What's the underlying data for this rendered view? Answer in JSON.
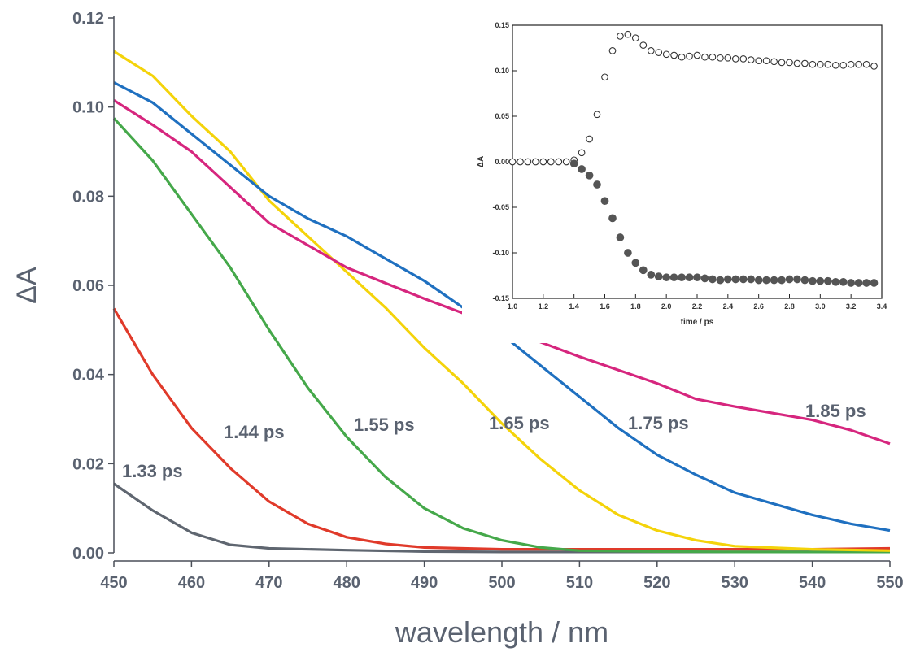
{
  "chart_data": [
    {
      "type": "line",
      "xlabel": "wavelength / nm",
      "ylabel": "ΔA",
      "xlim": [
        450,
        550
      ],
      "ylim": [
        0,
        0.12
      ],
      "xticks": [
        450,
        460,
        470,
        480,
        490,
        500,
        510,
        520,
        530,
        540,
        550
      ],
      "yticks": [
        0.0,
        0.02,
        0.04,
        0.06,
        0.08,
        0.1,
        0.12
      ],
      "grid": false,
      "series": [
        {
          "name": "1.33 ps",
          "color": "#5f6670",
          "x": [
            450,
            455,
            460,
            465,
            470,
            480,
            490,
            500,
            510,
            520,
            530,
            540,
            550
          ],
          "values": [
            0.0155,
            0.0095,
            0.0045,
            0.0018,
            0.001,
            0.0006,
            0.0003,
            0.0002,
            0.0002,
            0.0002,
            0.0002,
            0.0002,
            0.0002
          ]
        },
        {
          "name": "1.44 ps",
          "color": "#e03a2a",
          "x": [
            450,
            455,
            460,
            465,
            470,
            475,
            480,
            485,
            490,
            495,
            500,
            510,
            520,
            530,
            540,
            550
          ],
          "values": [
            0.0548,
            0.04,
            0.028,
            0.019,
            0.0115,
            0.0065,
            0.0035,
            0.002,
            0.0012,
            0.001,
            0.0008,
            0.0008,
            0.0008,
            0.0008,
            0.0008,
            0.001
          ]
        },
        {
          "name": "1.55 ps",
          "color": "#45a84a",
          "x": [
            450,
            455,
            460,
            465,
            470,
            475,
            480,
            485,
            490,
            495,
            500,
            505,
            510,
            520,
            530,
            540,
            550
          ],
          "values": [
            0.0975,
            0.088,
            0.076,
            0.064,
            0.05,
            0.037,
            0.026,
            0.017,
            0.01,
            0.0055,
            0.0028,
            0.0012,
            0.0005,
            0.0003,
            0.0002,
            0.0002,
            0.0002
          ]
        },
        {
          "name": "1.65 ps",
          "color": "#f4d30a",
          "x": [
            450,
            455,
            460,
            465,
            470,
            475,
            480,
            485,
            490,
            495,
            500,
            505,
            510,
            515,
            520,
            525,
            530,
            540,
            550
          ],
          "values": [
            0.1125,
            0.107,
            0.098,
            0.09,
            0.079,
            0.071,
            0.063,
            0.055,
            0.046,
            0.038,
            0.029,
            0.021,
            0.014,
            0.0085,
            0.005,
            0.0028,
            0.0015,
            0.0008,
            0.0005
          ]
        },
        {
          "name": "1.75 ps",
          "color": "#1f70c0",
          "x": [
            450,
            455,
            460,
            465,
            470,
            475,
            480,
            485,
            490,
            495,
            500,
            505,
            510,
            515,
            520,
            525,
            530,
            535,
            540,
            545,
            550
          ],
          "values": [
            0.1055,
            0.101,
            0.094,
            0.087,
            0.08,
            0.075,
            0.071,
            0.066,
            0.061,
            0.055,
            0.049,
            0.042,
            0.035,
            0.028,
            0.022,
            0.0175,
            0.0135,
            0.011,
            0.0085,
            0.0065,
            0.005
          ]
        },
        {
          "name": "1.85 ps",
          "color": "#d6267e",
          "x": [
            450,
            455,
            460,
            470,
            480,
            490,
            500,
            510,
            520,
            525,
            530,
            540,
            545,
            550
          ],
          "values": [
            0.1015,
            0.096,
            0.09,
            0.074,
            0.064,
            0.057,
            0.0505,
            0.044,
            0.038,
            0.0345,
            0.0328,
            0.0298,
            0.0275,
            0.0245
          ]
        }
      ]
    },
    {
      "type": "scatter",
      "xlabel": "time / ps",
      "ylabel": "ΔA",
      "xlim": [
        1.0,
        3.4
      ],
      "ylim": [
        -0.15,
        0.15
      ],
      "xticks": [
        1.0,
        1.2,
        1.4,
        1.6,
        1.8,
        2.0,
        2.2,
        2.4,
        2.6,
        2.8,
        3.0,
        3.2,
        3.4
      ],
      "yticks": [
        -0.15,
        -0.1,
        -0.05,
        0.0,
        0.05,
        0.1,
        0.15
      ],
      "grid": false,
      "series": [
        {
          "marker": "open-circle",
          "x": [
            1.0,
            1.05,
            1.1,
            1.15,
            1.2,
            1.25,
            1.3,
            1.35,
            1.4,
            1.45,
            1.5,
            1.55,
            1.6,
            1.65,
            1.7,
            1.75,
            1.8,
            1.85,
            1.9,
            1.95,
            2.0,
            2.05,
            2.1,
            2.15,
            2.2,
            2.25,
            2.3,
            2.35,
            2.4,
            2.45,
            2.5,
            2.55,
            2.6,
            2.65,
            2.7,
            2.75,
            2.8,
            2.85,
            2.9,
            2.95,
            3.0,
            3.05,
            3.1,
            3.15,
            3.2,
            3.25,
            3.3,
            3.35
          ],
          "values": [
            0.0,
            0.0,
            0.0,
            0.0,
            0.0,
            0.0,
            0.0,
            0.0,
            0.002,
            0.01,
            0.025,
            0.052,
            0.093,
            0.122,
            0.138,
            0.14,
            0.136,
            0.128,
            0.122,
            0.12,
            0.118,
            0.117,
            0.115,
            0.116,
            0.117,
            0.115,
            0.115,
            0.114,
            0.114,
            0.113,
            0.113,
            0.112,
            0.111,
            0.111,
            0.11,
            0.109,
            0.109,
            0.108,
            0.108,
            0.107,
            0.107,
            0.107,
            0.106,
            0.106,
            0.107,
            0.107,
            0.107,
            0.105
          ]
        },
        {
          "marker": "filled-circle",
          "x": [
            1.4,
            1.45,
            1.5,
            1.55,
            1.6,
            1.65,
            1.7,
            1.75,
            1.8,
            1.85,
            1.9,
            1.95,
            2.0,
            2.05,
            2.1,
            2.15,
            2.2,
            2.25,
            2.3,
            2.35,
            2.4,
            2.45,
            2.5,
            2.55,
            2.6,
            2.65,
            2.7,
            2.75,
            2.8,
            2.85,
            2.9,
            2.95,
            3.0,
            3.05,
            3.1,
            3.15,
            3.2,
            3.25,
            3.3,
            3.35
          ],
          "values": [
            -0.002,
            -0.008,
            -0.015,
            -0.025,
            -0.043,
            -0.062,
            -0.083,
            -0.1,
            -0.111,
            -0.119,
            -0.124,
            -0.126,
            -0.127,
            -0.127,
            -0.127,
            -0.127,
            -0.127,
            -0.128,
            -0.129,
            -0.13,
            -0.129,
            -0.129,
            -0.129,
            -0.129,
            -0.13,
            -0.13,
            -0.13,
            -0.13,
            -0.129,
            -0.129,
            -0.13,
            -0.131,
            -0.131,
            -0.131,
            -0.132,
            -0.132,
            -0.133,
            -0.133,
            -0.133,
            -0.133
          ]
        }
      ]
    }
  ],
  "labels": {
    "s133": "1.33 ps",
    "s144": "1.44 ps",
    "s155": "1.55 ps",
    "s165": "1.65 ps",
    "s175": "1.75 ps",
    "s185": "1.85 ps"
  }
}
